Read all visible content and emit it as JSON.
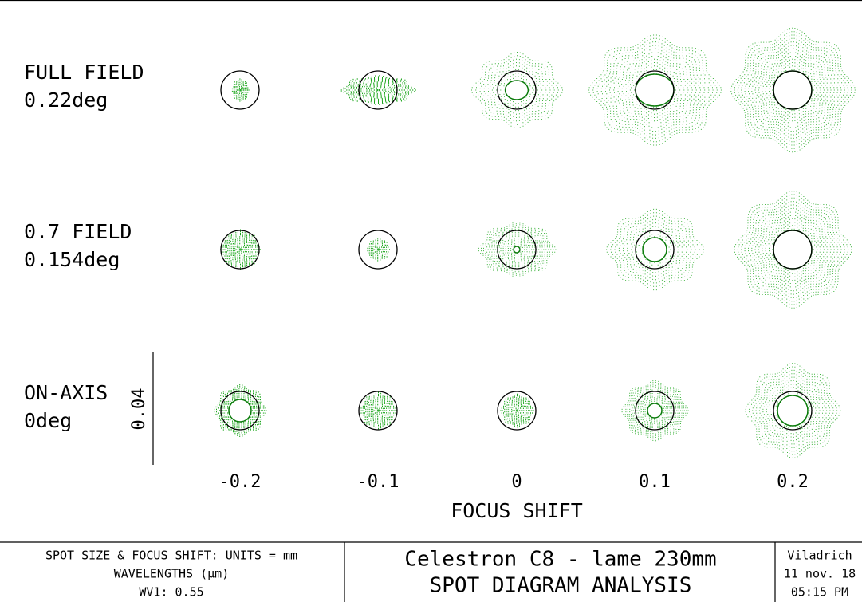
{
  "rows": [
    {
      "name": "FULL FIELD",
      "field": "0.22deg"
    },
    {
      "name": "0.7 FIELD",
      "field": "0.154deg"
    },
    {
      "name": "ON-AXIS",
      "field": "0deg"
    }
  ],
  "scale": "0.04",
  "columns": [
    "-0.2",
    "-0.1",
    "0",
    "0.1",
    "0.2"
  ],
  "x_label": "FOCUS SHIFT",
  "footer": {
    "units": "SPOT SIZE & FOCUS SHIFT: UNITS = mm",
    "wavelengths": "WAVELENGTHS (µm)",
    "wv1": "WV1: 0.55",
    "title": "Celestron C8 - lame 230mm",
    "subtitle": "SPOT DIAGRAM ANALYSIS",
    "author": "Viladrich",
    "date": "11 nov. 18",
    "time": "05:15 PM"
  }
}
